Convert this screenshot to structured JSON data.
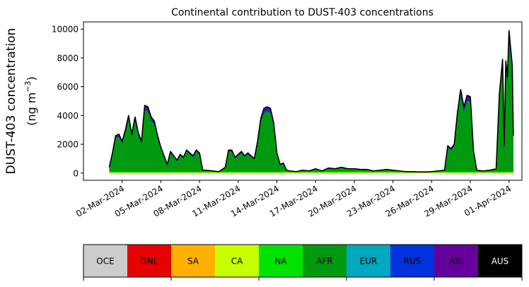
{
  "chart_data": {
    "type": "area",
    "title": "Continental contribution to DUST-403 concentrations",
    "ylabel_line1": "DUST-403 concentration",
    "ylabel_line2": "(ng m",
    "ylabel_unit_exp": "−3",
    "ylabel_close": ")",
    "xlabel": "",
    "x_start": "2024-02-28",
    "x_end": "2024-04-02",
    "ylim": [
      -500,
      10500
    ],
    "yticks": [
      0,
      2000,
      4000,
      6000,
      8000,
      10000
    ],
    "xticks": [
      {
        "date": "2024-03-02",
        "label": "02-Mar-2024"
      },
      {
        "date": "2024-03-05",
        "label": "05-Mar-2024"
      },
      {
        "date": "2024-03-08",
        "label": "08-Mar-2024"
      },
      {
        "date": "2024-03-11",
        "label": "11-Mar-2024"
      },
      {
        "date": "2024-03-14",
        "label": "14-Mar-2024"
      },
      {
        "date": "2024-03-17",
        "label": "17-Mar-2024"
      },
      {
        "date": "2024-03-20",
        "label": "20-Mar-2024"
      },
      {
        "date": "2024-03-23",
        "label": "23-Mar-2024"
      },
      {
        "date": "2024-03-26",
        "label": "26-Mar-2024"
      },
      {
        "date": "2024-03-29",
        "label": "29-Mar-2024"
      },
      {
        "date": "2024-04-01",
        "label": "01-Apr-2024"
      }
    ],
    "grid": false,
    "legend_placement": "below",
    "series_colors": {
      "total": "#000000",
      "ASI": "#66009c",
      "RUS": "#0033dd",
      "AFR": "#009a10",
      "NA": "#00e300",
      "CA": "#c8ff00",
      "SA": "#ffb000"
    },
    "series_top_labels": [
      "total",
      "ASI",
      "RUS",
      "AFR"
    ],
    "total_series": {
      "name": "total",
      "points": [
        [
          "2024-03-01",
          400
        ],
        [
          "2024-03-01T06:00",
          1400
        ],
        [
          "2024-03-01T12:00",
          2600
        ],
        [
          "2024-03-01T18:00",
          2700
        ],
        [
          "2024-03-02",
          2200
        ],
        [
          "2024-03-02T06:00",
          3000
        ],
        [
          "2024-03-02T12:00",
          4000
        ],
        [
          "2024-03-02T18:00",
          2700
        ],
        [
          "2024-03-03",
          3900
        ],
        [
          "2024-03-03T06:00",
          2800
        ],
        [
          "2024-03-03T12:00",
          2200
        ],
        [
          "2024-03-03T18:00",
          4700
        ],
        [
          "2024-03-04",
          4600
        ],
        [
          "2024-03-04T06:00",
          3900
        ],
        [
          "2024-03-04T12:00",
          3600
        ],
        [
          "2024-03-04T18:00",
          2600
        ],
        [
          "2024-03-05",
          1800
        ],
        [
          "2024-03-05T06:00",
          1200
        ],
        [
          "2024-03-05T12:00",
          600
        ],
        [
          "2024-03-05T18:00",
          1500
        ],
        [
          "2024-03-06",
          1200
        ],
        [
          "2024-03-06T06:00",
          900
        ],
        [
          "2024-03-06T12:00",
          1300
        ],
        [
          "2024-03-06T18:00",
          1100
        ],
        [
          "2024-03-07",
          1600
        ],
        [
          "2024-03-07T06:00",
          1400
        ],
        [
          "2024-03-07T12:00",
          1200
        ],
        [
          "2024-03-07T18:00",
          1600
        ],
        [
          "2024-03-08",
          1400
        ],
        [
          "2024-03-08T06:00",
          200
        ],
        [
          "2024-03-08T12:00",
          200
        ],
        [
          "2024-03-09",
          150
        ],
        [
          "2024-03-09T12:00",
          100
        ],
        [
          "2024-03-10",
          400
        ],
        [
          "2024-03-10T06:00",
          1600
        ],
        [
          "2024-03-10T12:00",
          1600
        ],
        [
          "2024-03-10T18:00",
          1100
        ],
        [
          "2024-03-11",
          1300
        ],
        [
          "2024-03-11T06:00",
          1500
        ],
        [
          "2024-03-11T12:00",
          1200
        ],
        [
          "2024-03-11T18:00",
          1400
        ],
        [
          "2024-03-12",
          1200
        ],
        [
          "2024-03-12T06:00",
          1000
        ],
        [
          "2024-03-12T12:00",
          2200
        ],
        [
          "2024-03-12T18:00",
          3800
        ],
        [
          "2024-03-13",
          4500
        ],
        [
          "2024-03-13T06:00",
          4600
        ],
        [
          "2024-03-13T12:00",
          4500
        ],
        [
          "2024-03-13T18:00",
          3500
        ],
        [
          "2024-03-14",
          1400
        ],
        [
          "2024-03-14T06:00",
          600
        ],
        [
          "2024-03-14T12:00",
          700
        ],
        [
          "2024-03-14T18:00",
          200
        ],
        [
          "2024-03-15",
          150
        ],
        [
          "2024-03-15T12:00",
          100
        ],
        [
          "2024-03-16",
          200
        ],
        [
          "2024-03-16T12:00",
          150
        ],
        [
          "2024-03-17",
          300
        ],
        [
          "2024-03-17T12:00",
          150
        ],
        [
          "2024-03-18",
          350
        ],
        [
          "2024-03-18T12:00",
          300
        ],
        [
          "2024-03-19",
          400
        ],
        [
          "2024-03-19T12:00",
          300
        ],
        [
          "2024-03-20",
          300
        ],
        [
          "2024-03-20T12:00",
          250
        ],
        [
          "2024-03-21",
          250
        ],
        [
          "2024-03-21T12:00",
          150
        ],
        [
          "2024-03-22",
          200
        ],
        [
          "2024-03-22T12:00",
          250
        ],
        [
          "2024-03-23",
          200
        ],
        [
          "2024-03-23T12:00",
          150
        ],
        [
          "2024-03-24",
          100
        ],
        [
          "2024-03-24T12:00",
          100
        ],
        [
          "2024-03-25",
          80
        ],
        [
          "2024-03-25T12:00",
          80
        ],
        [
          "2024-03-26",
          100
        ],
        [
          "2024-03-26T12:00",
          150
        ],
        [
          "2024-03-27",
          200
        ],
        [
          "2024-03-27T06:00",
          1900
        ],
        [
          "2024-03-27T12:00",
          1700
        ],
        [
          "2024-03-27T18:00",
          2000
        ],
        [
          "2024-03-28",
          4200
        ],
        [
          "2024-03-28T06:00",
          5800
        ],
        [
          "2024-03-28T12:00",
          4600
        ],
        [
          "2024-03-28T18:00",
          5400
        ],
        [
          "2024-03-29",
          5300
        ],
        [
          "2024-03-29T06:00",
          1500
        ],
        [
          "2024-03-29T12:00",
          200
        ],
        [
          "2024-03-30",
          150
        ],
        [
          "2024-03-30T12:00",
          200
        ],
        [
          "2024-03-31",
          300
        ],
        [
          "2024-03-31T06:00",
          5500
        ],
        [
          "2024-03-31T12:00",
          7900
        ],
        [
          "2024-03-31T15:00",
          1900
        ],
        [
          "2024-03-31T18:00",
          7800
        ],
        [
          "2024-03-31T21:00",
          6700
        ],
        [
          "2024-04-01",
          9900
        ],
        [
          "2024-04-01T06:00",
          7500
        ],
        [
          "2024-04-01T08:00",
          2600
        ]
      ]
    },
    "stack_fractions_of_total": {
      "ASI": 0.955,
      "RUS": 0.93,
      "AFR": 0.915
    },
    "legend": {
      "items": [
        {
          "label": "OCE",
          "color": "#cccccc",
          "text_color": "#000000"
        },
        {
          "label": "GNL",
          "color": "#e60000",
          "text_color": "#000000"
        },
        {
          "label": "SA",
          "color": "#ffb000",
          "text_color": "#000000"
        },
        {
          "label": "CA",
          "color": "#c8ff00",
          "text_color": "#000000"
        },
        {
          "label": "NA",
          "color": "#00e300",
          "text_color": "#000000"
        },
        {
          "label": "AFR",
          "color": "#009a10",
          "text_color": "#000000"
        },
        {
          "label": "EUR",
          "color": "#00a8c0",
          "text_color": "#000000"
        },
        {
          "label": "RUS",
          "color": "#0033dd",
          "text_color": "#000000"
        },
        {
          "label": "ASI",
          "color": "#66009c",
          "text_color": "#000000"
        },
        {
          "label": "AUS",
          "color": "#000000",
          "text_color": "#ffffff"
        }
      ]
    }
  }
}
